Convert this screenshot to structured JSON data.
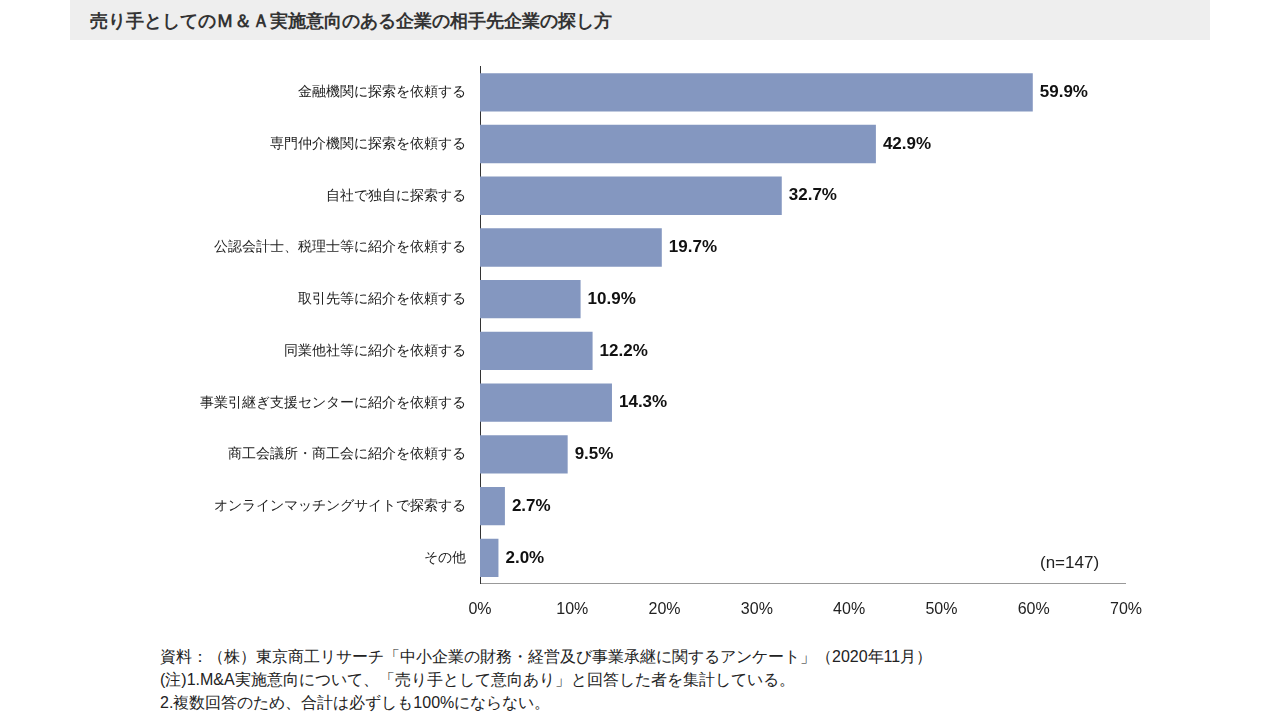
{
  "chart_data": {
    "type": "bar",
    "orientation": "horizontal",
    "title": "売り手としてのＭ＆Ａ実施意向のある企業の相手先企業の探し方",
    "categories": [
      "金融機関に探索を依頼する",
      "専門仲介機関に探索を依頼する",
      "自社で独自に探索する",
      "公認会計士、税理士等に紹介を依頼する",
      "取引先等に紹介を依頼する",
      "同業他社等に紹介を依頼する",
      "事業引継ぎ支援センターに紹介を依頼する",
      "商工会議所・商工会に紹介を依頼する",
      "オンラインマッチングサイトで探索する",
      "その他"
    ],
    "values": [
      59.9,
      42.9,
      32.7,
      19.7,
      10.9,
      12.2,
      14.3,
      9.5,
      2.7,
      2.0
    ],
    "value_labels": [
      "59.9%",
      "42.9%",
      "32.7%",
      "19.7%",
      "10.9%",
      "12.2%",
      "14.3%",
      "9.5%",
      "2.7%",
      "2.0%"
    ],
    "data_labels": true,
    "color": "#8497c0",
    "xlim": [
      0,
      70
    ],
    "xticks": [
      {
        "value": 0,
        "label": "0%"
      },
      {
        "value": 10,
        "label": "10%"
      },
      {
        "value": 20,
        "label": "20%"
      },
      {
        "value": 30,
        "label": "30%"
      },
      {
        "value": 40,
        "label": "40%"
      },
      {
        "value": 50,
        "label": "50%"
      },
      {
        "value": 60,
        "label": "60%"
      },
      {
        "value": 70,
        "label": "70%"
      }
    ],
    "grid": false,
    "annotations": [
      "(n=147)"
    ],
    "source": "資料：（株）東京商工リサーチ「中小企業の財務・経営及び事業承継に関するアンケート」（2020年11月）",
    "notes": [
      "(注)1.M&A実施意向について、「売り手として意向あり」と回答した者を集計している。",
      "2.複数回答のため、合計は必ずしも100%にならない。"
    ]
  }
}
